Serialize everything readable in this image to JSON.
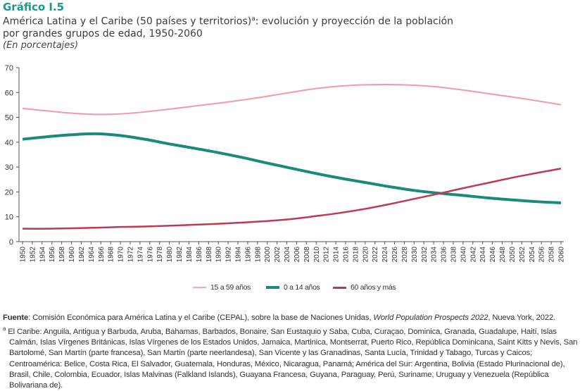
{
  "header": {
    "label": "Gráfico I.5",
    "title_part1": "América Latina y el Caribe (50 países y territorios)",
    "title_sup": "a",
    "title_part2": ": evolución y proyección de la población",
    "title_line2": "por grandes grupos de edad, 1950-2060",
    "subtitle": "(En porcentajes)"
  },
  "chart_data": {
    "type": "line",
    "title": "América Latina y el Caribe (50 países y territorios): evolución y proyección de la población por grandes grupos de edad, 1950-2060",
    "subtitle": "(En porcentajes)",
    "xlabel": "",
    "ylabel": "",
    "xlim": [
      1950,
      2060
    ],
    "ylim": [
      0,
      70
    ],
    "yticks": [
      0,
      10,
      20,
      30,
      40,
      50,
      60,
      70
    ],
    "xticks": [
      1950,
      1952,
      1954,
      1956,
      1958,
      1960,
      1962,
      1964,
      1966,
      1968,
      1970,
      1972,
      1974,
      1976,
      1978,
      1980,
      1982,
      1984,
      1986,
      1988,
      1990,
      1992,
      1994,
      1996,
      1998,
      2000,
      2002,
      2004,
      2006,
      2008,
      2010,
      2012,
      2014,
      2016,
      2018,
      2020,
      2022,
      2024,
      2026,
      2028,
      2030,
      2032,
      2034,
      2036,
      2038,
      2040,
      2042,
      2044,
      2046,
      2048,
      2050,
      2052,
      2054,
      2056,
      2058,
      2060
    ],
    "grid": false,
    "legend_position": "bottom",
    "x": [
      1950,
      1955,
      1960,
      1965,
      1970,
      1975,
      1980,
      1985,
      1990,
      1995,
      2000,
      2005,
      2010,
      2015,
      2020,
      2025,
      2030,
      2035,
      2040,
      2045,
      2050,
      2055,
      2060
    ],
    "series": [
      {
        "name": "15 a 59 años",
        "color": "#f29aa8",
        "width": 2,
        "values": [
          53.6,
          52.6,
          51.7,
          51.2,
          51.4,
          52.2,
          53.3,
          54.5,
          55.7,
          57.0,
          58.5,
          60.1,
          61.6,
          62.6,
          63.1,
          63.2,
          62.9,
          62.2,
          61.0,
          59.6,
          58.2,
          56.7,
          55.1
        ]
      },
      {
        "name": "0 a 14 años",
        "color": "#1a8a7a",
        "width": 4,
        "values": [
          41.2,
          42.2,
          43.0,
          43.4,
          42.7,
          41.2,
          39.3,
          37.6,
          35.8,
          33.8,
          31.6,
          29.5,
          27.4,
          25.5,
          23.8,
          22.1,
          20.6,
          19.5,
          18.6,
          17.6,
          16.8,
          16.1,
          15.6
        ]
      },
      {
        "name": "60 años y más",
        "color": "#c0394f",
        "width": 2.5,
        "values": [
          5.2,
          5.2,
          5.4,
          5.6,
          5.9,
          6.1,
          6.4,
          6.8,
          7.2,
          7.7,
          8.3,
          9.1,
          10.3,
          11.6,
          13.2,
          15.1,
          17.2,
          19.3,
          21.5,
          23.6,
          25.7,
          27.6,
          29.4
        ]
      }
    ]
  },
  "notes": {
    "source_label": "Fuente",
    "source_pre": ": Comisión Económica para América Latina y el Caribe (CEPAL), sobre la base de Naciones Unidas, ",
    "source_italic": "World Population Prospects 2022",
    "source_post": ", Nueva York, 2022.",
    "footnote_marker": "a",
    "footnote_text": " El Caribe: Anguila, Antigua y Barbuda, Aruba, Bahamas, Barbados, Bonaire, San Eustaquio y Saba, Cuba, Curaçao, Dominica, Granada, Guadalupe, Haití, Islas Caimán, Islas Vírgenes Británicas, Islas Vírgenes de los Estados Unidos, Jamaica, Martinica, Montserrat, Puerto Rico, República Dominicana, Saint Kitts y Nevis, San Bartolomé, San Martín (parte francesa), San Martín (parte neerlandesa), San Vicente y las Granadinas, Santa Lucía, Trinidad y Tabago, Turcas y Caicos; Centroamérica: Belice, Costa Rica, El Salvador, Guatemala, Honduras, México, Nicaragua, Panamá; América del Sur: Argentina, Bolivia (Estado Plurinacional de), Brasil, Chile, Colombia, Ecuador, Islas Malvinas (Falkland Islands), Guayana Francesa, Guyana, Paraguay, Perú, Suriname, Uruguay y Venezuela (República Bolivariana de)."
  }
}
